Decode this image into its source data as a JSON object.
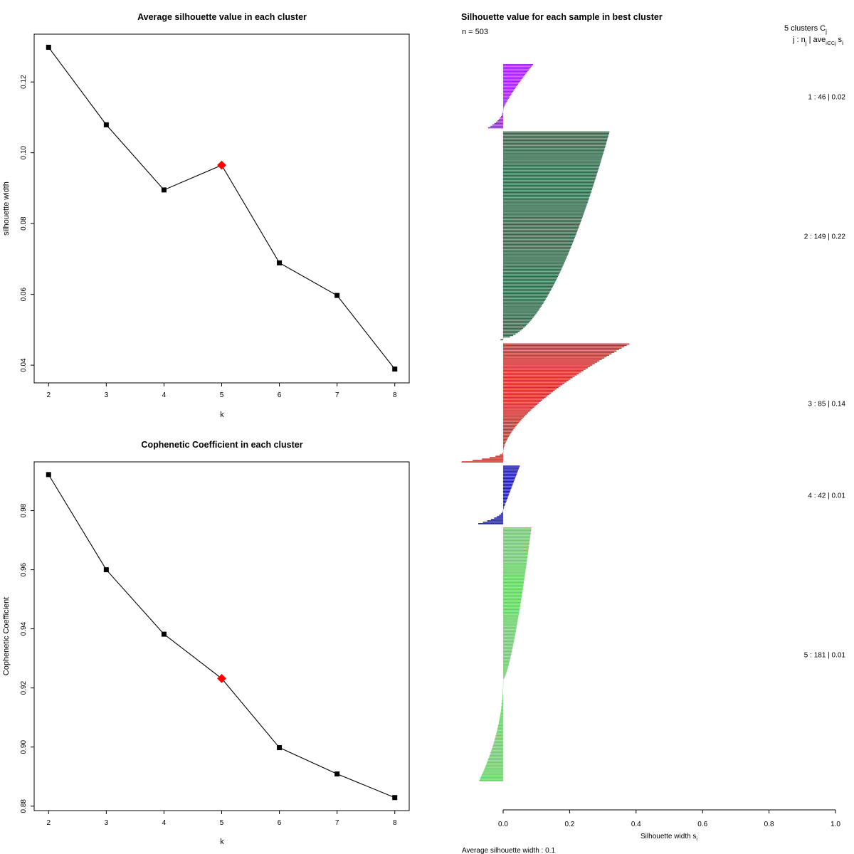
{
  "chart_data": [
    {
      "type": "line",
      "title": "Average silhouette value in each cluster",
      "xlabel": "k",
      "ylabel": "silhouette width",
      "x": [
        2,
        3,
        4,
        5,
        6,
        7,
        8
      ],
      "y": [
        0.1298,
        0.1079,
        0.0895,
        0.0965,
        0.0689,
        0.0597,
        0.0389
      ],
      "highlight_index": 3,
      "xlim": [
        1.75,
        8.25
      ],
      "ylim": [
        0.035,
        0.1335
      ],
      "xticks": [
        2,
        3,
        4,
        5,
        6,
        7,
        8
      ],
      "yticks": [
        0.04,
        0.06,
        0.08,
        0.1,
        0.12
      ],
      "ytick_labels": [
        "0.04",
        "0.06",
        "0.08",
        "0.10",
        "0.12"
      ],
      "colors": {
        "line": "#000000",
        "point": "#000000",
        "highlight": "#ff0000"
      }
    },
    {
      "type": "line",
      "title": "Cophenetic Coefficient in each cluster",
      "xlabel": "k",
      "ylabel": "Cophenetic Coefficient",
      "x": [
        2,
        3,
        4,
        5,
        6,
        7,
        8
      ],
      "y": [
        0.9922,
        0.96,
        0.9382,
        0.9232,
        0.8998,
        0.8909,
        0.8829
      ],
      "highlight_index": 3,
      "xlim": [
        1.75,
        8.25
      ],
      "ylim": [
        0.8785,
        0.9965
      ],
      "xticks": [
        2,
        3,
        4,
        5,
        6,
        7,
        8
      ],
      "yticks": [
        0.88,
        0.9,
        0.92,
        0.94,
        0.96,
        0.98
      ],
      "ytick_labels": [
        "0.88",
        "0.90",
        "0.92",
        "0.94",
        "0.96",
        "0.98"
      ],
      "colors": {
        "line": "#000000",
        "point": "#000000",
        "highlight": "#ff0000"
      }
    },
    {
      "type": "bar",
      "orientation": "horizontal",
      "title": "Silhouette value for each sample in best cluster",
      "n_label": "n = 503",
      "xlabel": "Silhouette width s",
      "xlabel_sub": "i",
      "xlim": [
        0.0,
        1.0
      ],
      "xticks": [
        0.0,
        0.2,
        0.4,
        0.6,
        0.8,
        1.0
      ],
      "xtick_labels": [
        "0.0",
        "0.2",
        "0.4",
        "0.6",
        "0.8",
        "1.0"
      ],
      "footer": "Average silhouette width :  0.1",
      "legend_header_1": "5  clusters  C",
      "legend_header_1_sub": "j",
      "legend_header_2": "j :  n",
      "legend_header_2_sub": "j",
      "legend_header_2_tail": " | ave",
      "legend_header_2_tail_sub": "i∈Cj",
      "legend_header_2_end": " s",
      "legend_header_2_end_sub": "i",
      "clusters": [
        {
          "id": 1,
          "n": 46,
          "avg": 0.02,
          "label": "1 :   46  |  0.02",
          "color": "#a020f0",
          "max": 0.09,
          "min": -0.045,
          "neg_frac": 0.28,
          "shape": 1.2
        },
        {
          "id": 2,
          "n": 149,
          "avg": 0.22,
          "label": "2 :   149  |  0.22",
          "color": "#2e6a4a",
          "max": 0.32,
          "min": -0.008,
          "neg_frac": 0.01,
          "shape": 0.55
        },
        {
          "id": 3,
          "n": 85,
          "avg": 0.14,
          "label": "3 :   85  |  0.14",
          "color": "#d42a2a",
          "max": 0.38,
          "min": -0.125,
          "neg_frac": 0.08,
          "shape": 1.6
        },
        {
          "id": 4,
          "n": 42,
          "avg": 0.01,
          "label": "4 :   42  |  0.01",
          "color": "#1a1aaa",
          "max": 0.05,
          "min": -0.075,
          "neg_frac": 0.24,
          "shape": 1.0
        },
        {
          "id": 5,
          "n": 181,
          "avg": 0.01,
          "label": "5 :   181  |  0.01",
          "color": "#62d062",
          "max": 0.085,
          "min": -0.072,
          "neg_frac": 0.4,
          "shape": 0.7
        }
      ]
    }
  ]
}
